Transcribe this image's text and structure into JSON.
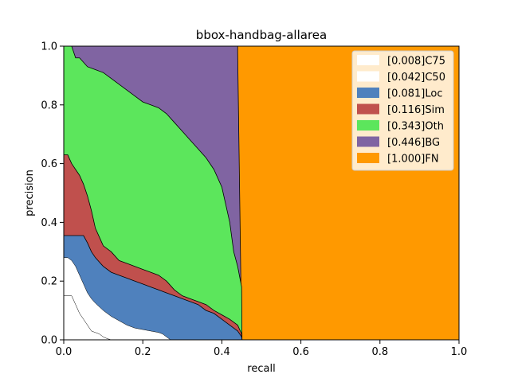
{
  "chart_data": {
    "type": "area",
    "title": "bbox-handbag-allarea",
    "xlabel": "recall",
    "ylabel": "precision",
    "xlim": [
      0,
      1
    ],
    "ylim": [
      0,
      1
    ],
    "xticks": [
      "0.0",
      "0.2",
      "0.4",
      "0.6",
      "0.8",
      "1.0"
    ],
    "yticks": [
      "0.0",
      "0.2",
      "0.4",
      "0.6",
      "0.8",
      "1.0"
    ],
    "grid": false,
    "legend_position": "top-right",
    "series": [
      {
        "name": "[0.008]C75",
        "color": "#ffffff",
        "curve": [
          [
            0,
            0.15
          ],
          [
            0.02,
            0.15
          ],
          [
            0.03,
            0.12
          ],
          [
            0.04,
            0.09
          ],
          [
            0.05,
            0.07
          ],
          [
            0.06,
            0.05
          ],
          [
            0.07,
            0.03
          ],
          [
            0.08,
            0.025
          ],
          [
            0.09,
            0.02
          ],
          [
            0.1,
            0.01
          ],
          [
            0.11,
            0.004
          ],
          [
            0.12,
            0
          ]
        ]
      },
      {
        "name": "[0.042]C50",
        "color": "#ffffff",
        "curve": [
          [
            0,
            0.28
          ],
          [
            0.01,
            0.28
          ],
          [
            0.02,
            0.27
          ],
          [
            0.03,
            0.25
          ],
          [
            0.04,
            0.22
          ],
          [
            0.05,
            0.19
          ],
          [
            0.06,
            0.16
          ],
          [
            0.07,
            0.14
          ],
          [
            0.08,
            0.125
          ],
          [
            0.1,
            0.1
          ],
          [
            0.12,
            0.08
          ],
          [
            0.14,
            0.065
          ],
          [
            0.16,
            0.05
          ],
          [
            0.18,
            0.04
          ],
          [
            0.2,
            0.035
          ],
          [
            0.22,
            0.03
          ],
          [
            0.24,
            0.025
          ],
          [
            0.25,
            0.02
          ],
          [
            0.26,
            0.01
          ],
          [
            0.27,
            0
          ]
        ]
      },
      {
        "name": "[0.081]Loc",
        "color": "#4f81bd",
        "curve": [
          [
            0,
            0.355
          ],
          [
            0.01,
            0.355
          ],
          [
            0.05,
            0.355
          ],
          [
            0.06,
            0.33
          ],
          [
            0.07,
            0.3
          ],
          [
            0.08,
            0.28
          ],
          [
            0.1,
            0.25
          ],
          [
            0.12,
            0.23
          ],
          [
            0.14,
            0.22
          ],
          [
            0.16,
            0.21
          ],
          [
            0.18,
            0.2
          ],
          [
            0.2,
            0.19
          ],
          [
            0.22,
            0.18
          ],
          [
            0.24,
            0.17
          ],
          [
            0.26,
            0.16
          ],
          [
            0.28,
            0.15
          ],
          [
            0.3,
            0.14
          ],
          [
            0.32,
            0.13
          ],
          [
            0.34,
            0.12
          ],
          [
            0.36,
            0.1
          ],
          [
            0.38,
            0.09
          ],
          [
            0.4,
            0.07
          ],
          [
            0.42,
            0.05
          ],
          [
            0.44,
            0.03
          ],
          [
            0.45,
            0.01
          ],
          [
            0.451,
            0
          ]
        ]
      },
      {
        "name": "[0.116]Sim",
        "color": "#c0504d",
        "curve": [
          [
            0,
            0.63
          ],
          [
            0.01,
            0.63
          ],
          [
            0.02,
            0.6
          ],
          [
            0.03,
            0.58
          ],
          [
            0.04,
            0.56
          ],
          [
            0.05,
            0.53
          ],
          [
            0.06,
            0.49
          ],
          [
            0.07,
            0.44
          ],
          [
            0.08,
            0.38
          ],
          [
            0.09,
            0.35
          ],
          [
            0.1,
            0.32
          ],
          [
            0.12,
            0.3
          ],
          [
            0.14,
            0.27
          ],
          [
            0.16,
            0.26
          ],
          [
            0.18,
            0.25
          ],
          [
            0.2,
            0.24
          ],
          [
            0.22,
            0.23
          ],
          [
            0.24,
            0.22
          ],
          [
            0.26,
            0.2
          ],
          [
            0.28,
            0.17
          ],
          [
            0.3,
            0.15
          ],
          [
            0.32,
            0.14
          ],
          [
            0.34,
            0.13
          ],
          [
            0.36,
            0.12
          ],
          [
            0.38,
            0.1
          ],
          [
            0.4,
            0.085
          ],
          [
            0.42,
            0.07
          ],
          [
            0.44,
            0.05
          ],
          [
            0.45,
            0.02
          ],
          [
            0.451,
            0
          ]
        ]
      },
      {
        "name": "[0.343]Oth",
        "color": "#5ce65c",
        "curve": [
          [
            0,
            1
          ],
          [
            0.02,
            1
          ],
          [
            0.03,
            0.96
          ],
          [
            0.04,
            0.96
          ],
          [
            0.06,
            0.93
          ],
          [
            0.08,
            0.92
          ],
          [
            0.1,
            0.91
          ],
          [
            0.12,
            0.89
          ],
          [
            0.14,
            0.87
          ],
          [
            0.16,
            0.85
          ],
          [
            0.18,
            0.83
          ],
          [
            0.2,
            0.81
          ],
          [
            0.22,
            0.8
          ],
          [
            0.24,
            0.79
          ],
          [
            0.26,
            0.77
          ],
          [
            0.28,
            0.74
          ],
          [
            0.3,
            0.71
          ],
          [
            0.32,
            0.68
          ],
          [
            0.34,
            0.65
          ],
          [
            0.36,
            0.62
          ],
          [
            0.38,
            0.58
          ],
          [
            0.4,
            0.52
          ],
          [
            0.42,
            0.4
          ],
          [
            0.43,
            0.3
          ],
          [
            0.44,
            0.25
          ],
          [
            0.45,
            0.18
          ],
          [
            0.451,
            0
          ]
        ]
      },
      {
        "name": "[0.446]BG",
        "color": "#8064a2",
        "curve": [
          [
            0,
            1
          ],
          [
            0.44,
            1
          ],
          [
            0.44,
            0.98
          ],
          [
            0.45,
            0.02
          ],
          [
            0.451,
            0
          ]
        ]
      },
      {
        "name": "[1.000]FN",
        "color": "#ff9900",
        "curve": [
          [
            0,
            1
          ],
          [
            1,
            1
          ]
        ]
      }
    ]
  }
}
